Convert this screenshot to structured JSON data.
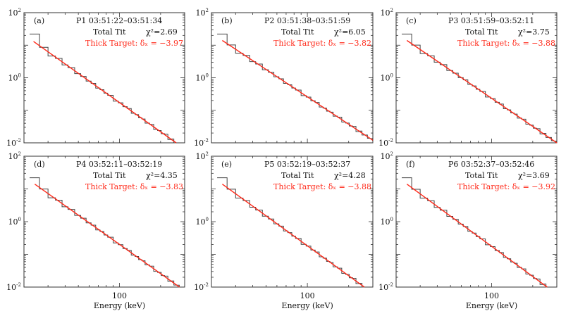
{
  "figure": {
    "xlabel": "Energy (keV)",
    "x_tick_label": "100",
    "y_tick_labels": {
      "top": "10",
      "top_exp": "2",
      "mid": "10",
      "mid_exp": "0",
      "bottom": "10",
      "bottom_exp": "-2"
    },
    "colors": {
      "data": "#444444",
      "fit": "#ff2a1a",
      "axis": "#333333",
      "text": "#111111"
    }
  },
  "chart_data": [
    {
      "type": "line",
      "panel": "(a)",
      "interval": "P1",
      "time": "03:51:22–03:51:34",
      "model_label": "Total Tit",
      "chi2_label": "χ²=2.69",
      "chi2": 2.69,
      "fit_label": "Thick Target: δₓ = −3.97",
      "delta": -3.97,
      "xscale": "log",
      "yscale": "log",
      "xlim": [
        20,
        300
      ],
      "ylim": [
        0.01,
        100
      ],
      "xlabel": "Energy (keV)",
      "ylabel": "",
      "fit_start": [
        23.5,
        13
      ],
      "fit_end": [
        260,
        0.01
      ],
      "first_step": {
        "x": [
          22,
          26
        ],
        "y": 22
      }
    },
    {
      "type": "line",
      "panel": "(b)",
      "interval": "P2",
      "time": "03:51:38–03:51:59",
      "model_label": "Total Tit",
      "chi2_label": "χ²=6.05",
      "chi2": 6.05,
      "fit_label": "Thick Target: δₓ = −3.82",
      "delta": -3.82,
      "xscale": "log",
      "yscale": "log",
      "xlim": [
        20,
        300
      ],
      "ylim": [
        0.01,
        100
      ],
      "xlabel": "Energy (keV)",
      "ylabel": "",
      "fit_start": [
        24,
        14
      ],
      "fit_end": [
        300,
        0.012
      ],
      "first_step": {
        "x": [
          22,
          26
        ],
        "y": 22
      }
    },
    {
      "type": "line",
      "panel": "(c)",
      "interval": "P3",
      "time": "03:51:59–03:52:11",
      "model_label": "Total Tit",
      "chi2_label": "χ²=3.75",
      "chi2": 3.75,
      "fit_label": "Thick Target: δₓ = −3.88",
      "delta": -3.88,
      "xscale": "log",
      "yscale": "log",
      "xlim": [
        20,
        300
      ],
      "ylim": [
        0.01,
        100
      ],
      "xlabel": "Energy (keV)",
      "ylabel": "",
      "fit_start": [
        24,
        14
      ],
      "fit_end": [
        300,
        0.01
      ],
      "first_step": {
        "x": [
          22,
          26
        ],
        "y": 22
      }
    },
    {
      "type": "line",
      "panel": "(d)",
      "interval": "P4",
      "time": "03:52:11–03:52:19",
      "model_label": "Total Tit",
      "chi2_label": "χ²=4.35",
      "chi2": 4.35,
      "fit_label": "Thick Target: δₓ = −3.83",
      "delta": -3.83,
      "xscale": "log",
      "yscale": "log",
      "xlim": [
        20,
        300
      ],
      "ylim": [
        0.01,
        100
      ],
      "xlabel": "Energy (keV)",
      "ylabel": "",
      "fit_start": [
        24,
        14
      ],
      "fit_end": [
        275,
        0.01
      ],
      "first_step": {
        "x": [
          22,
          26
        ],
        "y": 22
      }
    },
    {
      "type": "line",
      "panel": "(e)",
      "interval": "P5",
      "time": "03:52:19–03:52:37",
      "model_label": "Total Tit",
      "chi2_label": "χ²=4.28",
      "chi2": 4.28,
      "fit_label": "Thick Target: δₓ = −3.88",
      "delta": -3.88,
      "xscale": "log",
      "yscale": "log",
      "xlim": [
        20,
        300
      ],
      "ylim": [
        0.01,
        100
      ],
      "xlabel": "Energy (keV)",
      "ylabel": "",
      "fit_start": [
        24,
        14
      ],
      "fit_end": [
        260,
        0.01
      ],
      "first_step": {
        "x": [
          22,
          26
        ],
        "y": 22
      }
    },
    {
      "type": "line",
      "panel": "(f)",
      "interval": "P6",
      "time": "03:52:37–03:52:46",
      "model_label": "Total Tit",
      "chi2_label": "χ²=3.69",
      "chi2": 3.69,
      "fit_label": "Thick Target: δₓ = −3.92",
      "delta": -3.92,
      "xscale": "log",
      "yscale": "log",
      "xlim": [
        20,
        300
      ],
      "ylim": [
        0.01,
        100
      ],
      "xlabel": "Energy (keV)",
      "ylabel": "",
      "fit_start": [
        24,
        14
      ],
      "fit_end": [
        255,
        0.01
      ],
      "first_step": {
        "x": [
          22,
          26
        ],
        "y": 22
      }
    }
  ]
}
